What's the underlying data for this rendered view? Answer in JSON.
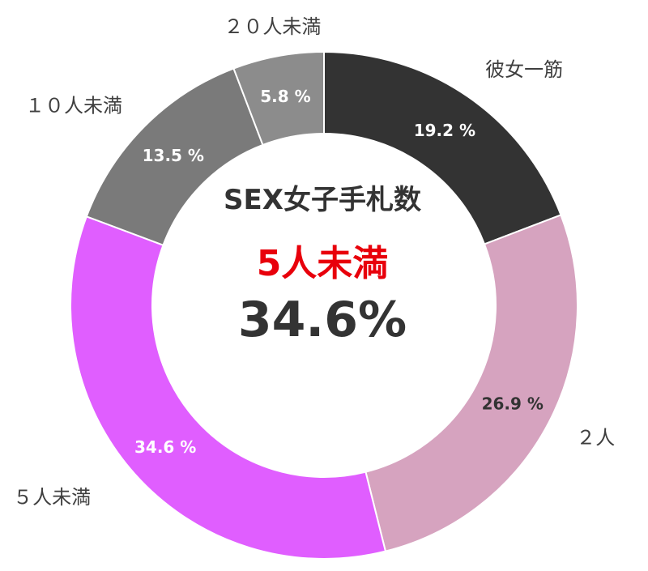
{
  "chart_data": {
    "type": "pie",
    "donut": true,
    "categories": [
      "彼女一筋",
      "２人",
      "５人未満",
      "１０人未満",
      "２０人未満"
    ],
    "values": [
      19.2,
      26.9,
      34.6,
      13.5,
      5.8
    ],
    "value_labels": [
      "19.2 %",
      "26.9 %",
      "34.6 %",
      "13.5 %",
      "5.8 %"
    ],
    "colors": [
      "#333333",
      "#d6a3bf",
      "#e05eff",
      "#7a7a7a",
      "#8c8c8c"
    ],
    "value_label_colors": [
      "#ffffff",
      "#333333",
      "#ffffff",
      "#ffffff",
      "#ffffff"
    ],
    "start": "top",
    "direction": "clockwise",
    "center": {
      "title": "SEX女子手札数",
      "highlight_category": "5人未満",
      "highlight_value": "34.6%"
    }
  }
}
